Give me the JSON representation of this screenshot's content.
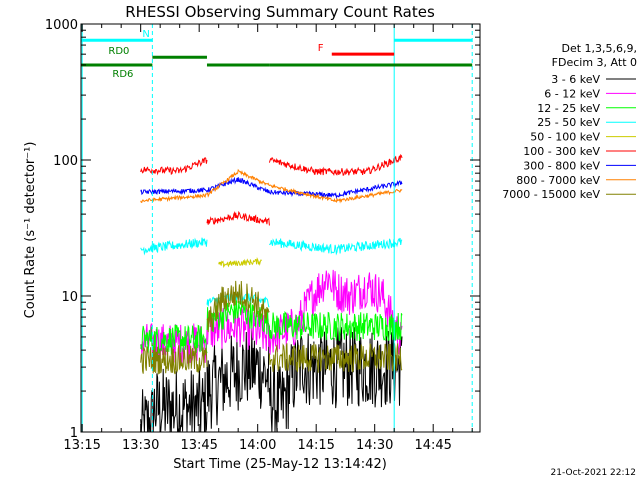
{
  "chart_data": {
    "type": "line",
    "title": "RHESSI Observing Summary Count Rates",
    "xlabel": "Start Time (25-May-12 13:14:42)",
    "ylabel": "Count Rate (s⁻¹ detector⁻¹)",
    "x_tick_labels": [
      "13:15",
      "13:30",
      "13:45",
      "14:00",
      "14:15",
      "14:30",
      "14:45"
    ],
    "x_ticks_min": [
      15,
      30,
      45,
      60,
      75,
      90,
      105
    ],
    "xlim_min": [
      14.7,
      117
    ],
    "y_scale": "log",
    "ylim": [
      1,
      1000
    ],
    "y_tick_labels": [
      "1",
      "10",
      "100",
      "1000"
    ],
    "y_ticks": [
      1,
      10,
      100,
      1000
    ],
    "legend_position": "right",
    "legend_header": [
      "Det 1,3,5,6,9,",
      "FDecim 3, Att 0"
    ],
    "timestamp": "21-Oct-2021 22:12",
    "flags": [
      {
        "label": "N",
        "color": "#00ffff",
        "y": 760,
        "segments": [
          [
            14.7,
            33
          ],
          [
            95,
            115
          ]
        ]
      },
      {
        "label": "F",
        "color": "#ff0000",
        "y": 600,
        "segments": [
          [
            79,
            95
          ]
        ]
      },
      {
        "label": "RD0",
        "color": "#008000",
        "y": 570,
        "segments": [
          [
            33,
            47
          ]
        ]
      },
      {
        "label": "RD6",
        "color": "#008000",
        "y": 500,
        "segments": [
          [
            14.7,
            33
          ],
          [
            47,
            63
          ],
          [
            63,
            97
          ],
          [
            97,
            115
          ]
        ]
      }
    ],
    "vlines": [
      {
        "x": 15,
        "color": "#00ffff",
        "dashed": false
      },
      {
        "x": 33,
        "color": "#00ffff",
        "dashed": true
      },
      {
        "x": 95,
        "color": "#00ffff",
        "dashed": false
      },
      {
        "x": 115,
        "color": "#00ffff",
        "dashed": true
      }
    ],
    "series": [
      {
        "name": "3 - 6 keV",
        "color": "#000000",
        "noise": 0.7,
        "segments": [
          {
            "x": [
              30,
              33,
              33.5,
              47
            ],
            "y": [
              1.0,
              1.2,
              1.5,
              1.5
            ]
          },
          {
            "x": [
              47,
              52,
              56,
              60,
              63
            ],
            "y": [
              2.0,
              2.5,
              3.0,
              3.0,
              2.5
            ]
          },
          {
            "x": [
              63,
              66,
              69,
              72
            ],
            "y": [
              1.8,
              1.5,
              2.5,
              3.5
            ]
          },
          {
            "x": [
              72,
              97
            ],
            "y": [
              3.0,
              3.0
            ]
          }
        ]
      },
      {
        "name": "6 - 12 keV",
        "color": "#ff00ff",
        "noise": 0.35,
        "segments": [
          {
            "x": [
              30,
              47
            ],
            "y": [
              4.5,
              4.5
            ]
          },
          {
            "x": [
              47,
              55,
              63
            ],
            "y": [
              5.5,
              6.0,
              5.0
            ]
          },
          {
            "x": [
              63,
              70,
              74,
              78,
              80,
              84,
              88,
              92,
              97
            ],
            "y": [
              5.0,
              6.0,
              10.0,
              14.0,
              11.0,
              10.0,
              12.0,
              10.0,
              4.5
            ]
          }
        ]
      },
      {
        "name": "12 - 25 keV",
        "color": "#00ff00",
        "noise": 0.25,
        "segments": [
          {
            "x": [
              30,
              47
            ],
            "y": [
              4.8,
              4.8
            ]
          },
          {
            "x": [
              47,
              55,
              63
            ],
            "y": [
              6.5,
              8.0,
              6.5
            ]
          },
          {
            "x": [
              63,
              97
            ],
            "y": [
              6.0,
              6.0
            ]
          }
        ]
      },
      {
        "name": "25 - 50 keV",
        "color": "#00ffff",
        "noise": 0.08,
        "segments": [
          {
            "x": [
              30,
              47
            ],
            "y": [
              22,
              25
            ]
          },
          {
            "x": [
              47,
              55,
              63
            ],
            "y": [
              9.0,
              10.0,
              9.0
            ]
          },
          {
            "x": [
              63,
              80,
              97
            ],
            "y": [
              25,
              22,
              25
            ]
          }
        ]
      },
      {
        "name": "50 - 100 keV",
        "color": "#cccc00",
        "noise": 0.05,
        "segments": [
          {
            "x": [
              50,
              61
            ],
            "y": [
              17,
              18
            ]
          }
        ]
      },
      {
        "name": "100 - 300 keV",
        "color": "#ff0000",
        "noise": 0.06,
        "segments": [
          {
            "x": [
              30,
              40,
              47
            ],
            "y": [
              85,
              83,
              100
            ]
          },
          {
            "x": [
              47,
              55,
              63
            ],
            "y": [
              35,
              39,
              35
            ]
          },
          {
            "x": [
              63,
              75,
              88,
              97
            ],
            "y": [
              100,
              82,
              82,
              105
            ]
          }
        ]
      },
      {
        "name": "300 - 800 keV",
        "color": "#0000ff",
        "noise": 0.04,
        "segments": [
          {
            "x": [
              30,
              47,
              55,
              63,
              80,
              97
            ],
            "y": [
              58,
              60,
              72,
              58,
              55,
              68
            ]
          }
        ]
      },
      {
        "name": "800 - 7000 keV",
        "color": "#ff8000",
        "noise": 0.03,
        "segments": [
          {
            "x": [
              30,
              47,
              55,
              63,
              80,
              97
            ],
            "y": [
              50,
              55,
              82,
              65,
              50,
              60
            ]
          }
        ]
      },
      {
        "name": "7000 - 15000 keV",
        "color": "#808000",
        "noise": 0.25,
        "segments": [
          {
            "x": [
              30,
              47
            ],
            "y": [
              3.4,
              3.4
            ]
          },
          {
            "x": [
              47,
              51,
              55,
              59,
              63
            ],
            "y": [
              6.0,
              9.5,
              10.5,
              9.5,
              6.5
            ]
          },
          {
            "x": [
              63,
              97
            ],
            "y": [
              3.5,
              3.5
            ]
          }
        ]
      }
    ]
  }
}
